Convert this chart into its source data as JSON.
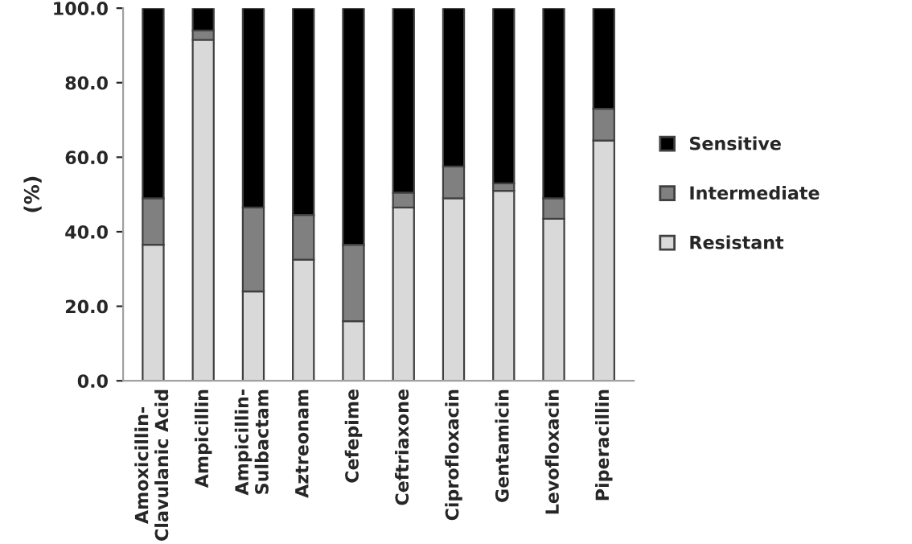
{
  "chart_data": {
    "type": "bar",
    "stacked": true,
    "ylabel": "(%)",
    "categories": [
      "Amoxicillin-\nClavulanic Acid",
      "Ampicillin",
      "Ampicillin-\nSulbactam",
      "Aztreonam",
      "Cefepime",
      "Ceftriaxone",
      "Ciprofloxacin",
      "Gentamicin",
      "Levofloxacin",
      "Piperacillin"
    ],
    "series": [
      {
        "name": "Resistant",
        "color": "#d9d9d9",
        "values": [
          36.5,
          91.5,
          24,
          32.5,
          16,
          46.5,
          49,
          51,
          43.5,
          64.5
        ]
      },
      {
        "name": "Intermediate",
        "color": "#808080",
        "values": [
          12.5,
          2.5,
          22.5,
          12,
          20.5,
          4,
          8.5,
          2,
          5.5,
          8.5
        ]
      },
      {
        "name": "Sensitive",
        "color": "#000000",
        "values": [
          51,
          6,
          53.5,
          55.5,
          63.5,
          49.5,
          42.5,
          47,
          51,
          27
        ]
      }
    ],
    "ylim": [
      0,
      100
    ],
    "yticks": [
      {
        "value": 0,
        "label": "0.0"
      },
      {
        "value": 20,
        "label": "20.0"
      },
      {
        "value": 40,
        "label": "40.0"
      },
      {
        "value": 60,
        "label": "60.0"
      },
      {
        "value": 80,
        "label": "80.0"
      },
      {
        "value": 100,
        "label": "100.0"
      }
    ],
    "grid": false,
    "legend": "right"
  }
}
